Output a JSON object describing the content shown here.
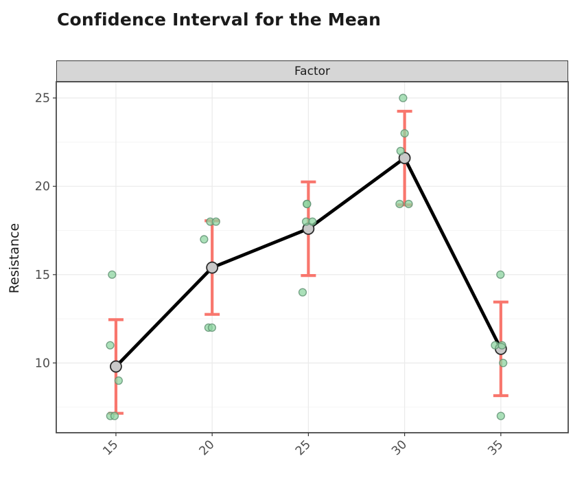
{
  "chart_data": {
    "type": "scatter",
    "title": "Confidence Interval for the Mean",
    "facet_label": "Factor",
    "xlabel": "",
    "ylabel": "Resistance",
    "x_ticks": [
      15,
      20,
      25,
      30,
      35
    ],
    "y_ticks": [
      10,
      15,
      20,
      25
    ],
    "y_minor_gridlines": [
      7.5,
      12.5,
      17.5,
      22.5
    ],
    "xlim": [
      11.9,
      38.5
    ],
    "ylim": [
      6.05,
      25.92
    ],
    "grid": "horizontal major+minor, vertical major only",
    "legend": "none",
    "groups": [
      {
        "factor": 15,
        "mean": 9.8,
        "ci_low": 7.15,
        "ci_high": 12.45,
        "values": [
          15,
          11,
          9,
          7,
          7
        ],
        "jittered_points": [
          [
            14.8,
            15
          ],
          [
            14.7,
            11
          ],
          [
            15.14,
            9
          ],
          [
            14.71,
            7
          ],
          [
            14.93,
            7
          ]
        ]
      },
      {
        "factor": 20,
        "mean": 15.4,
        "ci_low": 12.75,
        "ci_high": 18.05,
        "values": [
          18,
          18,
          17,
          12,
          12
        ],
        "jittered_points": [
          [
            19.9,
            18
          ],
          [
            20.2,
            18
          ],
          [
            19.58,
            17
          ],
          [
            19.81,
            12
          ],
          [
            19.99,
            12
          ]
        ]
      },
      {
        "factor": 25,
        "mean": 17.6,
        "ci_low": 14.95,
        "ci_high": 20.25,
        "values": [
          19,
          19,
          18,
          18,
          14
        ],
        "jittered_points": [
          [
            24.92,
            19
          ],
          [
            24.93,
            19
          ],
          [
            24.88,
            18
          ],
          [
            25.21,
            18
          ],
          [
            24.7,
            14
          ]
        ]
      },
      {
        "factor": 30,
        "mean": 21.6,
        "ci_low": 18.95,
        "ci_high": 24.25,
        "values": [
          25,
          23,
          22,
          19,
          19
        ],
        "jittered_points": [
          [
            29.92,
            25
          ],
          [
            30.0,
            23
          ],
          [
            29.79,
            22
          ],
          [
            29.74,
            19
          ],
          [
            30.21,
            19
          ]
        ]
      },
      {
        "factor": 35,
        "mean": 10.8,
        "ci_low": 8.15,
        "ci_high": 13.45,
        "values": [
          15,
          11,
          11,
          10,
          7
        ],
        "jittered_points": [
          [
            34.98,
            15
          ],
          [
            34.7,
            11
          ],
          [
            35.06,
            11
          ],
          [
            35.12,
            10
          ],
          [
            35.0,
            7
          ]
        ]
      }
    ],
    "colors": {
      "point_fill": "#8FD5A1",
      "point_stroke": "#5E8E70",
      "errorbar": "#F8766D",
      "mean_fill": "#C9C9C9",
      "mean_stroke": "#2B2B2B",
      "mean_line": "#000000",
      "grid_major": "#EBEBEB",
      "grid_minor": "#F5F5F5",
      "panel_border": "#474747",
      "panel_bg": "#FFFFFF",
      "strip_bg": "#D6D6D6",
      "strip_border": "#3A3A3A",
      "axis_text": "#4D4D4D",
      "tick": "#333333",
      "title_color": "#1A1A1A"
    }
  }
}
